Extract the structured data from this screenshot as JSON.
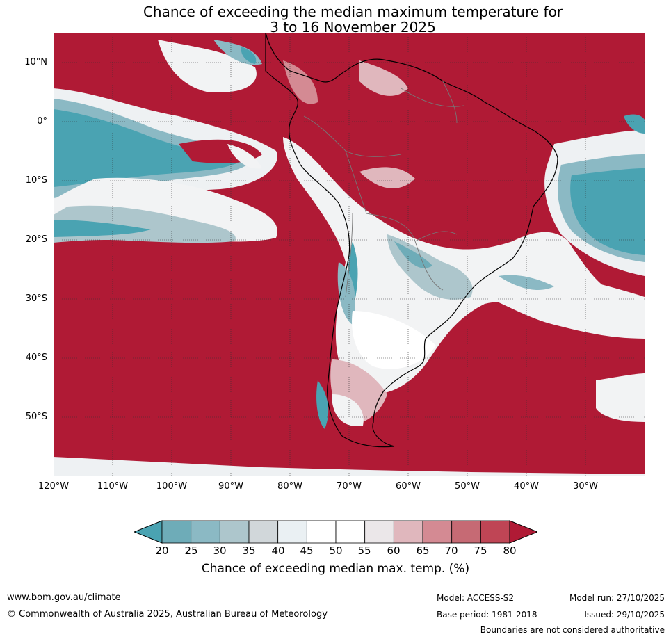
{
  "title": {
    "line1": "Chance of exceeding the median maximum temperature for",
    "line2": "3 to 16 November 2025"
  },
  "map": {
    "lat_ticks": [
      "10°N",
      "0°",
      "10°S",
      "20°S",
      "30°S",
      "40°S",
      "50°S"
    ],
    "lon_ticks": [
      "120°W",
      "110°W",
      "100°W",
      "90°W",
      "80°W",
      "70°W",
      "60°W",
      "50°W",
      "40°W",
      "30°W"
    ],
    "colors": {
      "above": "#b01a35",
      "below": "#4aa3b2",
      "neutral": "#ffffff"
    }
  },
  "colorbar": {
    "labels": [
      "20",
      "25",
      "30",
      "35",
      "40",
      "45",
      "50",
      "55",
      "60",
      "65",
      "70",
      "75",
      "80"
    ],
    "colors": [
      "#4aa3b2",
      "#6eacb8",
      "#8bb9c4",
      "#adc6cc",
      "#d1d7da",
      "#eaf0f3",
      "#ffffff",
      "#ffffff",
      "#ebe7e9",
      "#e0b7bd",
      "#d48a93",
      "#c66a74",
      "#bf4555",
      "#b01a35"
    ],
    "title": "Chance of exceeding median max. temp. (%)"
  },
  "footer": {
    "website": "www.bom.gov.au/climate",
    "copyright": "© Commonwealth of Australia 2025, Australian Bureau of Meteorology",
    "model": "Model: ACCESS-S2",
    "base_period": "Base period: 1981-2018",
    "model_run": "Model run: 27/10/2025",
    "issued": "Issued: 29/10/2025",
    "disclaimer": "Boundaries are not considered authoritative"
  }
}
